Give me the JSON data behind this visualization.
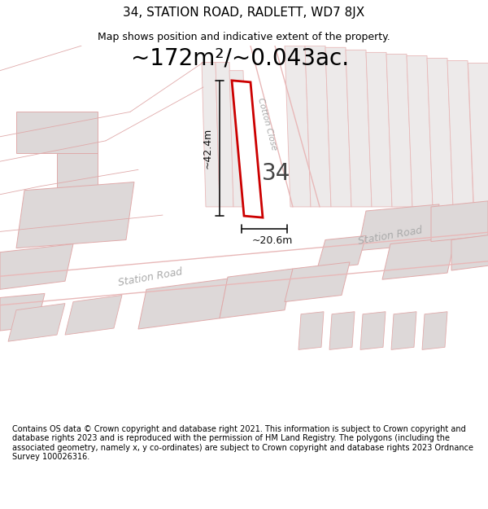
{
  "title": "34, STATION ROAD, RADLETT, WD7 8JX",
  "subtitle": "Map shows position and indicative extent of the property.",
  "area_text": "~172m²/~0.043ac.",
  "dim_width": "~20.6m",
  "dim_height": "~42.4m",
  "house_number": "34",
  "street_label_lower": "Station Road",
  "street_label_right": "Station Road",
  "close_label": "Cotton Close",
  "footer": "Contains OS data © Crown copyright and database right 2021. This information is subject to Crown copyright and database rights 2023 and is reproduced with the permission of HM Land Registry. The polygons (including the associated geometry, namely x, y co-ordinates) are subject to Crown copyright and database rights 2023 Ordnance Survey 100026316.",
  "map_bg": "#f7f6f4",
  "plot_fill": "#ffffff",
  "plot_edge": "#cc0000",
  "road_color": "#e8b8b8",
  "bld_edge": "#e0aaaa",
  "bld_fill": "#e8e4e4",
  "bld_fill2": "#ddd8d8",
  "title_fontsize": 11,
  "subtitle_fontsize": 9,
  "area_fontsize": 20,
  "footer_fontsize": 7.0,
  "label_color": "#aaaaaa",
  "dim_color": "#111111"
}
